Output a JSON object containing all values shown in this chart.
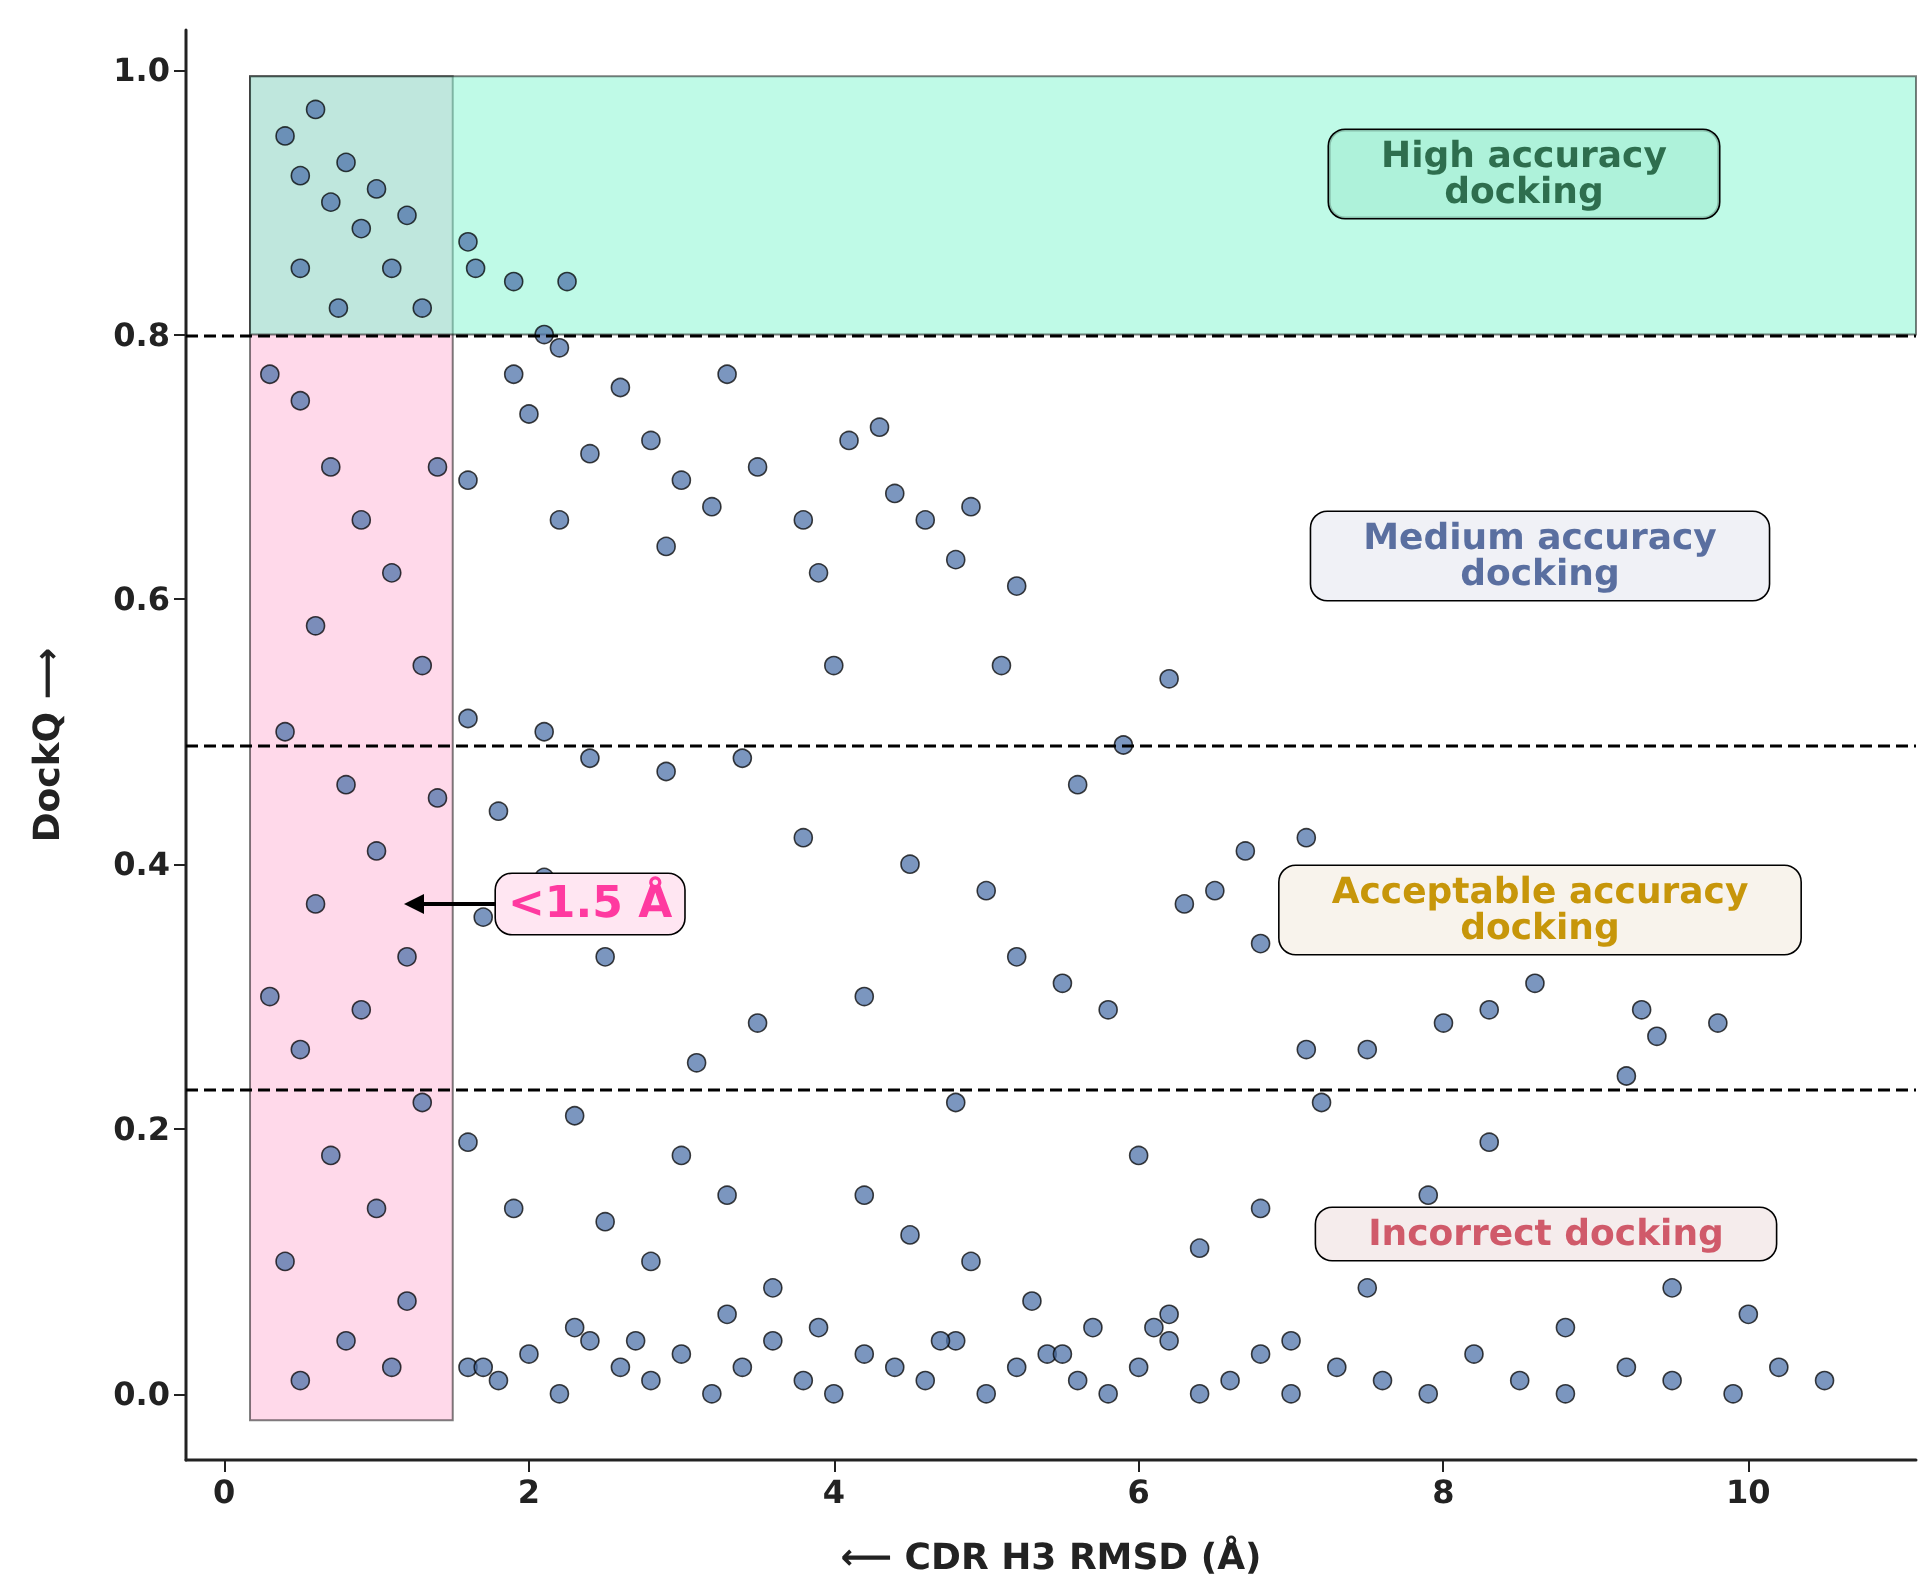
{
  "chart_data": {
    "type": "scatter",
    "xlabel": "⟵ CDR H3 RMSD (Å)",
    "ylabel": "DockQ ⟶",
    "marker": "circle",
    "xlim": [
      -0.25,
      11.1
    ],
    "xticks": [
      0,
      2,
      4,
      6,
      8,
      10
    ],
    "ylim": [
      -0.05,
      1.03
    ],
    "yticks": [
      {
        "value": 0,
        "label": "0.0"
      },
      0.2,
      0.4,
      0.6,
      0.8,
      {
        "value": 1,
        "label": "1.0"
      }
    ],
    "bands": [
      {
        "axis": "x",
        "from": 0.17,
        "to": 1.5,
        "color": "#ffb3d6"
      },
      {
        "axis": "y",
        "from": 0.8,
        "to": 0.995,
        "color": "#7ff5cf"
      }
    ],
    "ref_lines": [
      {
        "axis": "y",
        "value": 0.8,
        "line_style": "dashed",
        "color": "#000000"
      },
      {
        "axis": "y",
        "value": 0.49,
        "line_style": "dashed",
        "color": "#000000"
      },
      {
        "axis": "y",
        "value": 0.23,
        "line_style": "dashed",
        "color": "#000000"
      }
    ],
    "annotations": [
      "High accuracy\ndocking",
      "Medium accuracy\ndocking",
      "Acceptable accuracy\ndocking",
      "Incorrect docking",
      "<1.5 Å"
    ],
    "series": [
      {
        "color": "#4f73aa",
        "x": [
          0.4,
          0.5,
          0.6,
          0.7,
          0.8,
          0.9,
          1.0,
          1.1,
          1.2,
          1.3,
          0.5,
          0.75,
          1.6,
          1.65,
          1.9,
          2.25,
          2.1,
          0.5,
          0.7,
          0.9,
          1.1,
          0.6,
          1.3,
          0.4,
          0.8,
          1.0,
          0.6,
          1.2,
          0.9,
          0.5,
          1.3,
          0.7,
          1.0,
          0.4,
          1.2,
          0.8,
          0.5,
          1.1,
          1.4,
          0.3,
          1.4,
          0.3,
          1.6,
          1.9,
          2.0,
          2.2,
          2.4,
          2.6,
          2.8,
          3.0,
          3.3,
          2.2,
          2.9,
          3.2,
          3.5,
          3.8,
          4.1,
          4.3,
          4.4,
          4.6,
          4.8,
          4.9,
          3.9,
          5.2,
          6.2,
          5.1,
          4.0,
          1.6,
          1.8,
          2.1,
          2.4,
          2.9,
          3.4,
          3.8,
          4.5,
          5.0,
          5.6,
          5.9,
          7.1,
          6.7,
          6.5,
          5.5,
          5.8,
          6.3,
          6.8,
          7.1,
          7.5,
          8.0,
          8.3,
          8.6,
          9.3,
          9.4,
          9.8,
          9.2,
          1.7,
          2.1,
          2.5,
          3.1,
          3.5,
          4.2,
          4.8,
          5.2,
          1.6,
          1.9,
          2.3,
          2.5,
          2.8,
          3.0,
          3.3,
          3.6,
          4.2,
          4.5,
          4.9,
          5.3,
          5.7,
          6.0,
          6.4,
          6.8,
          7.2,
          7.5,
          7.9,
          8.3,
          8.8,
          9.5,
          10.0,
          6.2,
          7.0,
          1.6,
          1.8,
          2.0,
          2.2,
          2.4,
          2.6,
          2.8,
          3.0,
          3.2,
          3.4,
          3.6,
          3.8,
          4.0,
          4.2,
          4.4,
          4.6,
          4.8,
          5.0,
          5.2,
          5.4,
          5.6,
          5.8,
          6.0,
          6.2,
          6.4,
          6.6,
          6.8,
          7.0,
          7.3,
          7.6,
          7.9,
          8.2,
          8.5,
          8.8,
          9.2,
          9.5,
          9.9,
          10.2,
          10.5,
          1.7,
          2.3,
          2.7,
          3.3,
          3.9,
          4.7,
          5.5,
          6.1
        ],
        "values": [
          0.95,
          0.92,
          0.97,
          0.9,
          0.93,
          0.88,
          0.91,
          0.85,
          0.89,
          0.82,
          0.85,
          0.82,
          0.87,
          0.85,
          0.84,
          0.84,
          0.8,
          0.75,
          0.7,
          0.66,
          0.62,
          0.58,
          0.55,
          0.5,
          0.46,
          0.41,
          0.37,
          0.33,
          0.29,
          0.26,
          0.22,
          0.18,
          0.14,
          0.1,
          0.07,
          0.04,
          0.01,
          0.02,
          0.7,
          0.3,
          0.45,
          0.77,
          0.69,
          0.77,
          0.74,
          0.79,
          0.71,
          0.76,
          0.72,
          0.69,
          0.77,
          0.66,
          0.64,
          0.67,
          0.7,
          0.66,
          0.72,
          0.73,
          0.68,
          0.66,
          0.63,
          0.67,
          0.62,
          0.61,
          0.54,
          0.55,
          0.55,
          0.51,
          0.44,
          0.5,
          0.48,
          0.47,
          0.48,
          0.42,
          0.4,
          0.38,
          0.46,
          0.49,
          0.42,
          0.41,
          0.38,
          0.31,
          0.29,
          0.37,
          0.34,
          0.26,
          0.26,
          0.28,
          0.29,
          0.31,
          0.29,
          0.27,
          0.28,
          0.24,
          0.36,
          0.39,
          0.33,
          0.25,
          0.28,
          0.3,
          0.22,
          0.33,
          0.19,
          0.14,
          0.21,
          0.13,
          0.1,
          0.18,
          0.15,
          0.08,
          0.15,
          0.12,
          0.1,
          0.07,
          0.05,
          0.18,
          0.11,
          0.14,
          0.22,
          0.08,
          0.15,
          0.19,
          0.05,
          0.08,
          0.06,
          0.06,
          0.04,
          0.02,
          0.01,
          0.03,
          0.0,
          0.04,
          0.02,
          0.01,
          0.03,
          0.0,
          0.02,
          0.04,
          0.01,
          0.0,
          0.03,
          0.02,
          0.01,
          0.04,
          0.0,
          0.02,
          0.03,
          0.01,
          0.0,
          0.02,
          0.04,
          0.0,
          0.01,
          0.03,
          0.0,
          0.02,
          0.01,
          0.0,
          0.03,
          0.01,
          0.0,
          0.02,
          0.01,
          0.0,
          0.02,
          0.01,
          0.02,
          0.05,
          0.04,
          0.06,
          0.05,
          0.04,
          0.03,
          0.05
        ]
      }
    ]
  }
}
